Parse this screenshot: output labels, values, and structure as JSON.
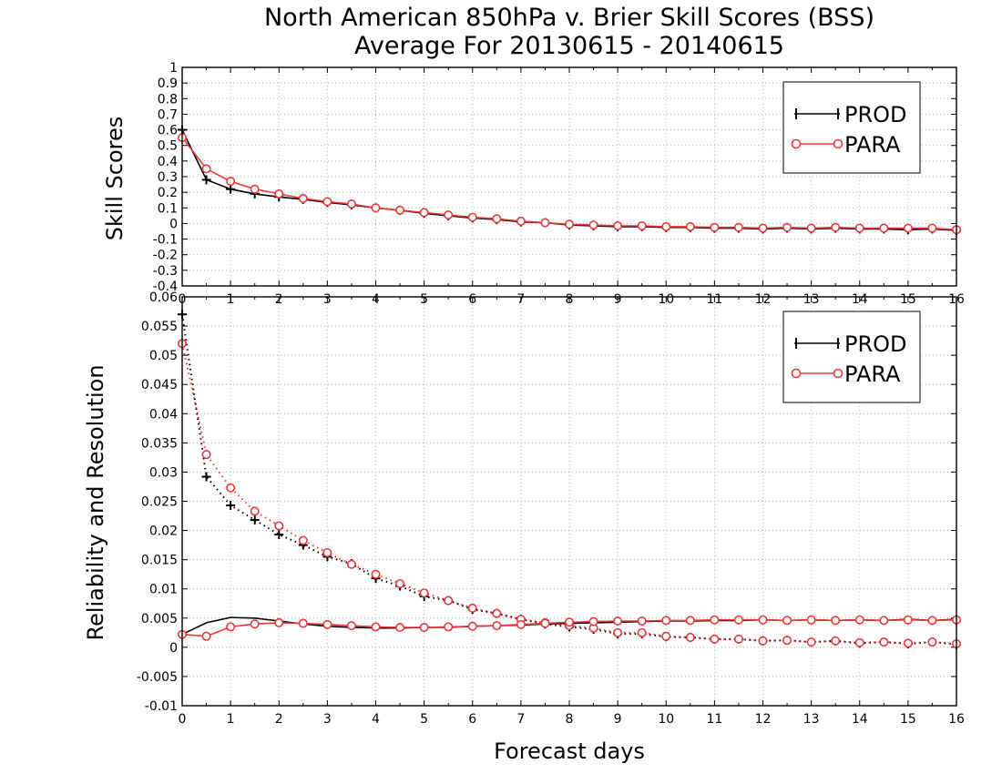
{
  "figure": {
    "title_line1": "North American 850hPa v. Brier Skill Scores (BSS)",
    "title_line2": "Average For 20130615 - 20140615",
    "xlabel": "Forecast days",
    "colors": {
      "prod": "#000000",
      "para": "#e8393a",
      "grid": "#b4b4b4"
    }
  },
  "chart_data": [
    {
      "type": "line",
      "ylabel": "Skill Scores",
      "xlim": [
        0,
        16
      ],
      "ylim": [
        -0.4,
        1
      ],
      "x_ticks": [
        "0",
        "1",
        "2",
        "3",
        "4",
        "5",
        "6",
        "7",
        "8",
        "9",
        "10",
        "11",
        "12",
        "13",
        "14",
        "15",
        "16"
      ],
      "y_ticks": [
        "-0.4",
        "-0.3",
        "-0.2",
        "-0.1",
        "0",
        "0.1",
        "0.2",
        "0.3",
        "0.4",
        "0.5",
        "0.6",
        "0.7",
        "0.8",
        "0.9",
        "1"
      ],
      "grid": true,
      "legend": "top-right",
      "legend_entries": [
        "PROD",
        "PARA"
      ],
      "x": [
        0,
        0.5,
        1,
        1.5,
        2,
        2.5,
        3,
        3.5,
        4,
        4.5,
        5,
        5.5,
        6,
        6.5,
        7,
        7.5,
        8,
        8.5,
        9,
        9.5,
        10,
        10.5,
        11,
        11.5,
        12,
        12.5,
        13,
        13.5,
        14,
        14.5,
        15,
        15.5,
        16
      ],
      "series": [
        {
          "name": "PROD",
          "style": "solid",
          "marker": "plus",
          "values": [
            0.6,
            0.28,
            0.22,
            0.19,
            0.17,
            0.155,
            0.135,
            0.12,
            0.1,
            0.085,
            0.065,
            0.05,
            0.035,
            0.025,
            0.01,
            0.005,
            -0.01,
            -0.015,
            -0.02,
            -0.02,
            -0.025,
            -0.025,
            -0.03,
            -0.03,
            -0.035,
            -0.03,
            -0.035,
            -0.03,
            -0.035,
            -0.035,
            -0.04,
            -0.035,
            -0.045
          ]
        },
        {
          "name": "PARA",
          "style": "solid",
          "marker": "circle",
          "values": [
            0.55,
            0.35,
            0.27,
            0.22,
            0.19,
            0.16,
            0.14,
            0.125,
            0.1,
            0.085,
            0.07,
            0.055,
            0.04,
            0.03,
            0.015,
            0.005,
            -0.005,
            -0.01,
            -0.015,
            -0.015,
            -0.02,
            -0.02,
            -0.025,
            -0.025,
            -0.03,
            -0.025,
            -0.03,
            -0.025,
            -0.03,
            -0.03,
            -0.03,
            -0.03,
            -0.04
          ]
        }
      ]
    },
    {
      "type": "line",
      "ylabel": "Reliability and Resolution",
      "xlim": [
        0,
        16
      ],
      "ylim": [
        -0.01,
        0.06
      ],
      "x_ticks": [
        "0",
        "1",
        "2",
        "3",
        "4",
        "5",
        "6",
        "7",
        "8",
        "9",
        "10",
        "11",
        "12",
        "13",
        "14",
        "15",
        "16"
      ],
      "y_ticks": [
        "-0.01",
        "-0.005",
        "0",
        "0.005",
        "0.01",
        "0.015",
        "0.02",
        "0.025",
        "0.03",
        "0.035",
        "0.04",
        "0.045",
        "0.05",
        "0.055",
        "0.06"
      ],
      "grid": true,
      "legend": "top-right",
      "legend_entries": [
        "PROD",
        "PARA"
      ],
      "x": [
        0,
        0.5,
        1,
        1.5,
        2,
        2.5,
        3,
        3.5,
        4,
        4.5,
        5,
        5.5,
        6,
        6.5,
        7,
        7.5,
        8,
        8.5,
        9,
        9.5,
        10,
        10.5,
        11,
        11.5,
        12,
        12.5,
        13,
        13.5,
        14,
        14.5,
        15,
        15.5,
        16
      ],
      "series": [
        {
          "name": "PROD",
          "style": "dotted",
          "marker": "plus",
          "values": [
            0.057,
            0.0292,
            0.0243,
            0.0218,
            0.0193,
            0.0175,
            0.0155,
            0.0143,
            0.0118,
            0.0105,
            0.0087,
            0.008,
            0.0065,
            0.0058,
            0.0048,
            0.004,
            0.0035,
            0.0031,
            0.0023,
            0.0023,
            0.0018,
            0.0017,
            0.0014,
            0.0014,
            0.0011,
            0.0012,
            0.0009,
            0.0011,
            0.0007,
            0.0009,
            0.0006,
            0.0009,
            0.0005
          ]
        },
        {
          "name": "PARA",
          "style": "dotted",
          "marker": "circle",
          "values": [
            0.052,
            0.033,
            0.0273,
            0.0233,
            0.0208,
            0.0183,
            0.0162,
            0.0142,
            0.0125,
            0.0109,
            0.0093,
            0.008,
            0.0067,
            0.0058,
            0.0048,
            0.0042,
            0.0037,
            0.0033,
            0.0025,
            0.0025,
            0.0019,
            0.0017,
            0.0014,
            0.0014,
            0.0011,
            0.0012,
            0.0009,
            0.0011,
            0.0008,
            0.0009,
            0.0007,
            0.0009,
            0.0006
          ]
        },
        {
          "name": "PROD",
          "style": "solid",
          "marker": "none",
          "values": [
            0.0022,
            0.0042,
            0.0051,
            0.005,
            0.0045,
            0.004,
            0.0036,
            0.0034,
            0.0033,
            0.0033,
            0.0034,
            0.0034,
            0.0036,
            0.0037,
            0.0038,
            0.004,
            0.0041,
            0.0042,
            0.0043,
            0.0044,
            0.0045,
            0.0045,
            0.0046,
            0.0046,
            0.0047,
            0.0046,
            0.0047,
            0.0046,
            0.0047,
            0.0046,
            0.0048,
            0.0046,
            0.0048
          ]
        },
        {
          "name": "PARA",
          "style": "solid",
          "marker": "circle",
          "values": [
            0.0022,
            0.0019,
            0.0035,
            0.004,
            0.0042,
            0.0041,
            0.0039,
            0.0037,
            0.0035,
            0.0034,
            0.0034,
            0.0035,
            0.0036,
            0.0037,
            0.0039,
            0.0041,
            0.0043,
            0.0044,
            0.0045,
            0.0045,
            0.0046,
            0.0046,
            0.0047,
            0.0047,
            0.0047,
            0.0046,
            0.0047,
            0.0046,
            0.0047,
            0.0046,
            0.0047,
            0.0046,
            0.0047
          ]
        }
      ]
    }
  ]
}
